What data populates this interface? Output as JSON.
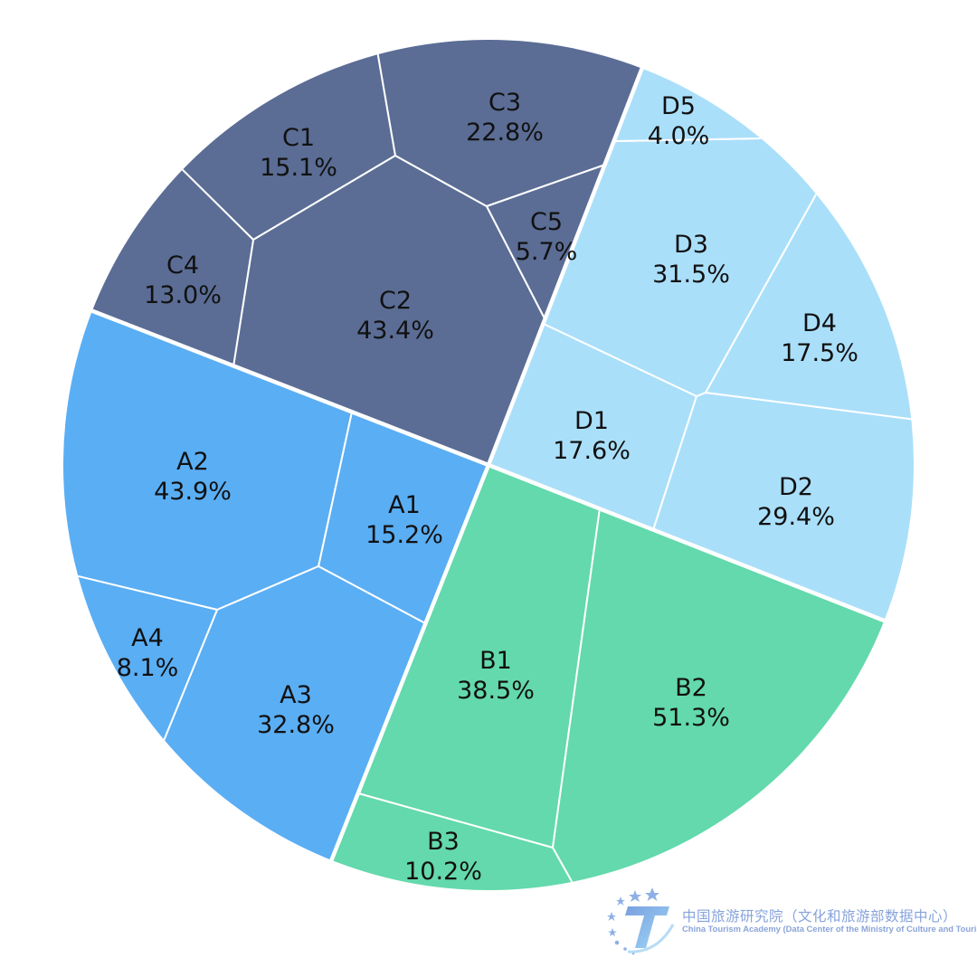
{
  "chart_data": {
    "type": "treemap",
    "shape": "circle",
    "groups": [
      {
        "name": "A",
        "color": "#5aaef4",
        "cells": [
          {
            "label": "A1",
            "value": 15.2
          },
          {
            "label": "A2",
            "value": 43.9
          },
          {
            "label": "A3",
            "value": 32.8
          },
          {
            "label": "A4",
            "value": 8.1
          }
        ]
      },
      {
        "name": "B",
        "color": "#63d9ad",
        "cells": [
          {
            "label": "B1",
            "value": 38.5
          },
          {
            "label": "B2",
            "value": 51.3
          },
          {
            "label": "B3",
            "value": 10.2
          }
        ]
      },
      {
        "name": "C",
        "color": "#5b6d95",
        "cells": [
          {
            "label": "C1",
            "value": 15.1
          },
          {
            "label": "C2",
            "value": 43.4
          },
          {
            "label": "C3",
            "value": 22.8
          },
          {
            "label": "C4",
            "value": 13.0
          },
          {
            "label": "C5",
            "value": 5.7
          }
        ]
      },
      {
        "name": "D",
        "color": "#aadffa",
        "cells": [
          {
            "label": "D1",
            "value": 17.6
          },
          {
            "label": "D2",
            "value": 29.4
          },
          {
            "label": "D3",
            "value": 31.5
          },
          {
            "label": "D4",
            "value": 17.5
          },
          {
            "label": "D5",
            "value": 4.0
          }
        ]
      }
    ],
    "value_suffix": "%"
  },
  "watermark": {
    "name_cn": "中国旅游研究院（文化和旅游部数据中心）",
    "name_en": "China Tourism Academy (Data Center of the Ministry of Culture and Tourism)",
    "color": "#86a3dc"
  }
}
